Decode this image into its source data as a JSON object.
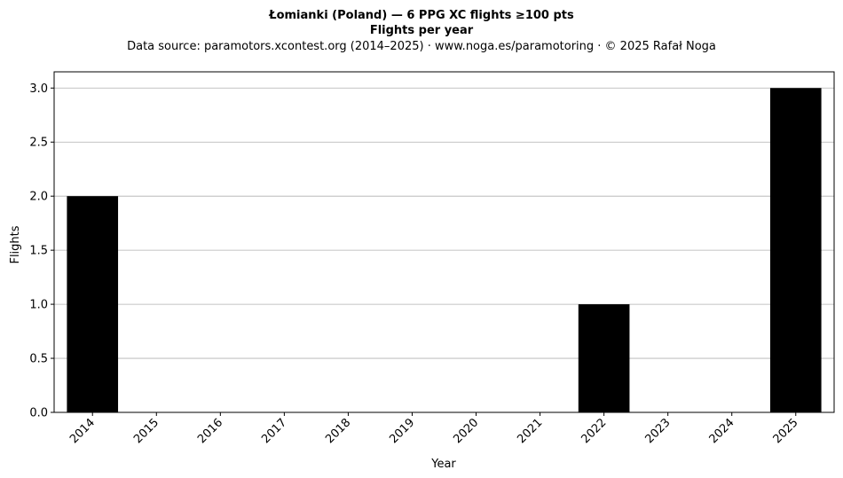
{
  "chart_data": {
    "type": "bar",
    "title": "Łomianki (Poland)  —  6 PPG XC flights ≥100 pts",
    "subtitle": "Flights per year",
    "source_line": "Data source: paramotors.xcontest.org (2014–2025)  ·  www.noga.es/paramotoring  ·  © 2025 Rafał Noga",
    "xlabel": "Year",
    "ylabel": "Flights",
    "categories": [
      "2014",
      "2015",
      "2016",
      "2017",
      "2018",
      "2019",
      "2020",
      "2021",
      "2022",
      "2023",
      "2024",
      "2025"
    ],
    "values": [
      2,
      0,
      0,
      0,
      0,
      0,
      0,
      0,
      1,
      0,
      0,
      3
    ],
    "ylim": [
      0,
      3.15
    ],
    "yticks": [
      0.0,
      0.5,
      1.0,
      1.5,
      2.0,
      2.5,
      3.0
    ],
    "ytick_labels": [
      "0.0",
      "0.5",
      "1.0",
      "1.5",
      "2.0",
      "2.5",
      "3.0"
    ],
    "grid": "y",
    "bar_color": "#000000",
    "grid_color": "#b0b0b0"
  }
}
